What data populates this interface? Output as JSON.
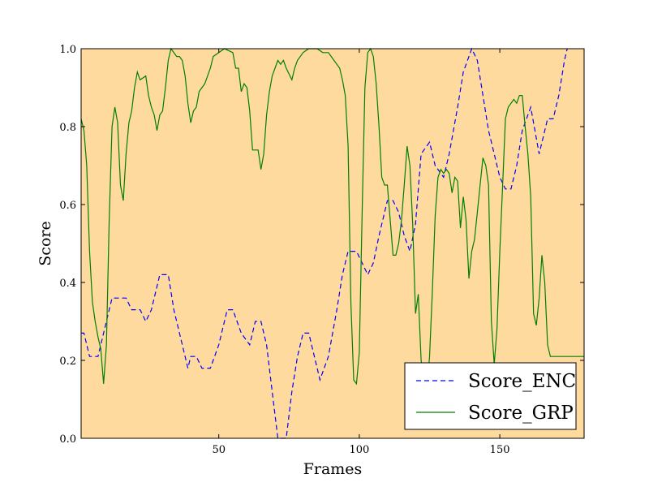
{
  "chart_data": {
    "type": "line",
    "title": "",
    "xlabel": "Frames",
    "ylabel": "Score",
    "xlim": [
      1,
      180
    ],
    "ylim": [
      0.0,
      1.0
    ],
    "xticks": [
      50,
      100,
      150
    ],
    "xtick_labels": [
      "50",
      "100",
      "150"
    ],
    "yticks": [
      0.0,
      0.2,
      0.4,
      0.6,
      0.8,
      1.0
    ],
    "ytick_labels": [
      "0.0",
      "0.2",
      "0.4",
      "0.6",
      "0.8",
      "1.0"
    ],
    "grid": false,
    "legend_position": "lower-right",
    "background_color": "#FFDA9E",
    "series": [
      {
        "name": "Score_ENC",
        "color": "#0000FF",
        "style": "dashed",
        "points": [
          [
            1,
            0.27
          ],
          [
            2,
            0.27
          ],
          [
            4,
            0.21
          ],
          [
            7,
            0.21
          ],
          [
            9,
            0.27
          ],
          [
            12,
            0.36
          ],
          [
            15,
            0.36
          ],
          [
            17,
            0.36
          ],
          [
            19,
            0.33
          ],
          [
            22,
            0.33
          ],
          [
            24,
            0.3
          ],
          [
            26,
            0.33
          ],
          [
            29,
            0.42
          ],
          [
            32,
            0.42
          ],
          [
            34,
            0.33
          ],
          [
            37,
            0.24
          ],
          [
            39,
            0.18
          ],
          [
            40,
            0.21
          ],
          [
            42,
            0.21
          ],
          [
            44,
            0.18
          ],
          [
            47,
            0.18
          ],
          [
            50,
            0.24
          ],
          [
            53,
            0.33
          ],
          [
            55,
            0.33
          ],
          [
            58,
            0.27
          ],
          [
            61,
            0.24
          ],
          [
            63,
            0.3
          ],
          [
            65,
            0.3
          ],
          [
            67,
            0.24
          ],
          [
            69,
            0.12
          ],
          [
            71,
            0.0
          ],
          [
            74,
            0.0
          ],
          [
            76,
            0.12
          ],
          [
            78,
            0.21
          ],
          [
            80,
            0.27
          ],
          [
            82,
            0.27
          ],
          [
            84,
            0.21
          ],
          [
            86,
            0.15
          ],
          [
            89,
            0.21
          ],
          [
            92,
            0.33
          ],
          [
            94,
            0.42
          ],
          [
            96,
            0.48
          ],
          [
            99,
            0.48
          ],
          [
            101,
            0.45
          ],
          [
            103,
            0.42
          ],
          [
            105,
            0.45
          ],
          [
            107,
            0.52
          ],
          [
            110,
            0.61
          ],
          [
            112,
            0.61
          ],
          [
            114,
            0.58
          ],
          [
            116,
            0.52
          ],
          [
            118,
            0.48
          ],
          [
            120,
            0.55
          ],
          [
            122,
            0.73
          ],
          [
            125,
            0.76
          ],
          [
            127,
            0.7
          ],
          [
            130,
            0.67
          ],
          [
            132,
            0.73
          ],
          [
            135,
            0.85
          ],
          [
            137,
            0.94
          ],
          [
            140,
            1.0
          ],
          [
            142,
            0.97
          ],
          [
            144,
            0.88
          ],
          [
            146,
            0.79
          ],
          [
            148,
            0.73
          ],
          [
            150,
            0.67
          ],
          [
            152,
            0.64
          ],
          [
            154,
            0.64
          ],
          [
            156,
            0.7
          ],
          [
            158,
            0.79
          ],
          [
            161,
            0.85
          ],
          [
            164,
            0.73
          ],
          [
            167,
            0.82
          ],
          [
            169,
            0.82
          ],
          [
            171,
            0.88
          ],
          [
            173,
            0.97
          ],
          [
            174,
            1.0
          ]
        ]
      },
      {
        "name": "Score_GRP",
        "color": "#008000",
        "style": "solid",
        "points": [
          [
            1,
            0.82
          ],
          [
            2,
            0.79
          ],
          [
            3,
            0.7
          ],
          [
            4,
            0.48
          ],
          [
            5,
            0.35
          ],
          [
            6,
            0.3
          ],
          [
            7,
            0.26
          ],
          [
            8,
            0.23
          ],
          [
            9,
            0.14
          ],
          [
            10,
            0.24
          ],
          [
            11,
            0.56
          ],
          [
            12,
            0.8
          ],
          [
            13,
            0.85
          ],
          [
            14,
            0.81
          ],
          [
            15,
            0.65
          ],
          [
            16,
            0.61
          ],
          [
            17,
            0.73
          ],
          [
            18,
            0.81
          ],
          [
            19,
            0.84
          ],
          [
            20,
            0.9
          ],
          [
            21,
            0.94
          ],
          [
            22,
            0.92
          ],
          [
            24,
            0.93
          ],
          [
            25,
            0.88
          ],
          [
            26,
            0.85
          ],
          [
            27,
            0.83
          ],
          [
            28,
            0.79
          ],
          [
            29,
            0.83
          ],
          [
            30,
            0.84
          ],
          [
            31,
            0.9
          ],
          [
            32,
            0.97
          ],
          [
            33,
            1.0
          ],
          [
            35,
            0.98
          ],
          [
            36,
            0.98
          ],
          [
            37,
            0.97
          ],
          [
            38,
            0.93
          ],
          [
            39,
            0.86
          ],
          [
            40,
            0.81
          ],
          [
            41,
            0.84
          ],
          [
            42,
            0.85
          ],
          [
            43,
            0.89
          ],
          [
            44,
            0.9
          ],
          [
            45,
            0.91
          ],
          [
            47,
            0.95
          ],
          [
            48,
            0.98
          ],
          [
            50,
            0.99
          ],
          [
            52,
            1.0
          ],
          [
            55,
            0.99
          ],
          [
            56,
            0.95
          ],
          [
            57,
            0.95
          ],
          [
            58,
            0.89
          ],
          [
            59,
            0.91
          ],
          [
            60,
            0.9
          ],
          [
            61,
            0.84
          ],
          [
            62,
            0.74
          ],
          [
            63,
            0.74
          ],
          [
            64,
            0.74
          ],
          [
            65,
            0.69
          ],
          [
            66,
            0.73
          ],
          [
            67,
            0.83
          ],
          [
            68,
            0.89
          ],
          [
            69,
            0.93
          ],
          [
            70,
            0.95
          ],
          [
            71,
            0.97
          ],
          [
            72,
            0.96
          ],
          [
            73,
            0.97
          ],
          [
            74,
            0.95
          ],
          [
            76,
            0.92
          ],
          [
            77,
            0.95
          ],
          [
            78,
            0.97
          ],
          [
            80,
            0.99
          ],
          [
            82,
            1.0
          ],
          [
            85,
            1.0
          ],
          [
            87,
            0.99
          ],
          [
            89,
            0.99
          ],
          [
            90,
            0.98
          ],
          [
            91,
            0.97
          ],
          [
            92,
            0.96
          ],
          [
            93,
            0.95
          ],
          [
            94,
            0.92
          ],
          [
            95,
            0.88
          ],
          [
            96,
            0.75
          ],
          [
            97,
            0.35
          ],
          [
            98,
            0.15
          ],
          [
            99,
            0.14
          ],
          [
            100,
            0.22
          ],
          [
            101,
            0.58
          ],
          [
            102,
            0.9
          ],
          [
            103,
            0.99
          ],
          [
            104,
            1.0
          ],
          [
            105,
            0.98
          ],
          [
            106,
            0.91
          ],
          [
            107,
            0.8
          ],
          [
            108,
            0.67
          ],
          [
            109,
            0.65
          ],
          [
            110,
            0.65
          ],
          [
            111,
            0.56
          ],
          [
            112,
            0.47
          ],
          [
            113,
            0.47
          ],
          [
            114,
            0.5
          ],
          [
            115,
            0.56
          ],
          [
            116,
            0.65
          ],
          [
            117,
            0.75
          ],
          [
            118,
            0.7
          ],
          [
            119,
            0.55
          ],
          [
            120,
            0.32
          ],
          [
            121,
            0.37
          ],
          [
            122,
            0.2
          ],
          [
            123,
            0.15
          ],
          [
            124,
            0.12
          ],
          [
            125,
            0.21
          ],
          [
            126,
            0.38
          ],
          [
            127,
            0.57
          ],
          [
            128,
            0.67
          ],
          [
            129,
            0.69
          ],
          [
            130,
            0.68
          ],
          [
            131,
            0.69
          ],
          [
            132,
            0.68
          ],
          [
            133,
            0.63
          ],
          [
            134,
            0.67
          ],
          [
            135,
            0.66
          ],
          [
            136,
            0.54
          ],
          [
            137,
            0.62
          ],
          [
            138,
            0.56
          ],
          [
            139,
            0.41
          ],
          [
            140,
            0.48
          ],
          [
            141,
            0.51
          ],
          [
            142,
            0.58
          ],
          [
            143,
            0.65
          ],
          [
            144,
            0.72
          ],
          [
            145,
            0.7
          ],
          [
            146,
            0.65
          ],
          [
            147,
            0.3
          ],
          [
            148,
            0.19
          ],
          [
            149,
            0.28
          ],
          [
            150,
            0.48
          ],
          [
            151,
            0.65
          ],
          [
            152,
            0.82
          ],
          [
            153,
            0.85
          ],
          [
            155,
            0.87
          ],
          [
            156,
            0.86
          ],
          [
            157,
            0.88
          ],
          [
            158,
            0.88
          ],
          [
            159,
            0.8
          ],
          [
            160,
            0.73
          ],
          [
            161,
            0.62
          ],
          [
            162,
            0.32
          ],
          [
            163,
            0.29
          ],
          [
            164,
            0.36
          ],
          [
            165,
            0.47
          ],
          [
            166,
            0.4
          ],
          [
            167,
            0.24
          ],
          [
            168,
            0.21
          ],
          [
            180,
            0.21
          ]
        ]
      }
    ]
  }
}
